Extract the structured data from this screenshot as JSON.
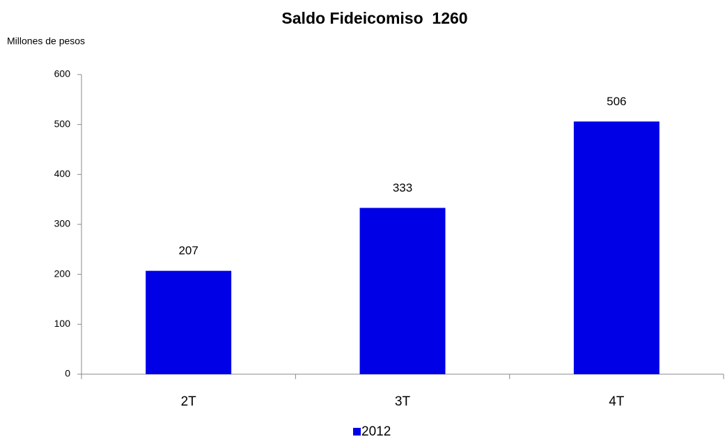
{
  "chart_data": {
    "type": "bar",
    "title": "Saldo Fideicomiso  1260",
    "y_label": "Millones de pesos",
    "categories": [
      "2T",
      "3T",
      "4T"
    ],
    "series": [
      {
        "name": "2012",
        "color": "#0000e6",
        "values": [
          207,
          333,
          506
        ]
      }
    ],
    "ylim": [
      0,
      600
    ],
    "yticks": [
      0,
      100,
      200,
      300,
      400,
      500,
      600
    ],
    "grid": false,
    "legend": "bottom"
  }
}
